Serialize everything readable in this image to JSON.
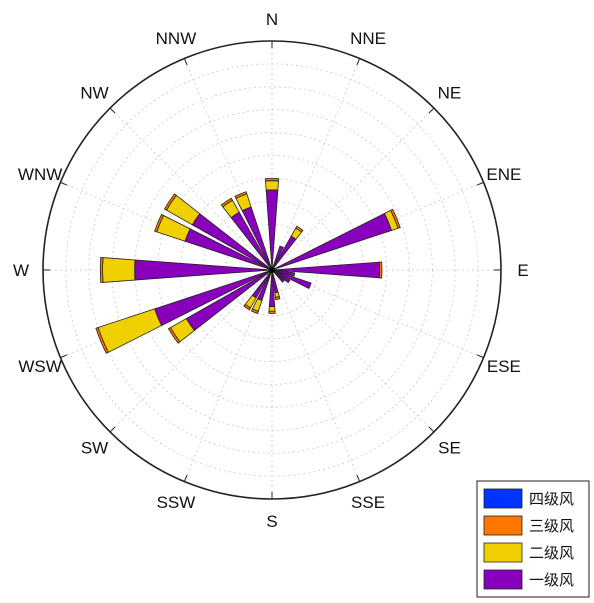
{
  "chart_data": {
    "type": "wind-rose",
    "directions": [
      "N",
      "NNE",
      "NE",
      "ENE",
      "E",
      "ESE",
      "SE",
      "SSE",
      "S",
      "SSW",
      "SW",
      "WSW",
      "W",
      "WNW",
      "NW",
      "NNW"
    ],
    "r_max": 100,
    "ring_step": 10,
    "grid": true,
    "legend_position": "bottom-right",
    "series": [
      {
        "name": "一级风",
        "color": "#8800bb",
        "values": [
          35,
          11,
          0,
          55,
          47,
          18,
          7,
          0,
          16,
          14,
          0,
          54,
          60,
          40,
          0,
          29
        ]
      },
      {
        "name": "二级风",
        "color": "#f0d000",
        "values": [
          4,
          0,
          0,
          3,
          0,
          0,
          0,
          0,
          2,
          5,
          0,
          26,
          14,
          13,
          0,
          6
        ]
      },
      {
        "name": "三级风",
        "color": "#ff7700",
        "values": [
          1,
          0,
          0,
          1,
          1,
          0,
          0,
          0,
          1,
          1,
          0,
          1,
          1,
          1,
          0,
          1
        ]
      },
      {
        "name": "四级风",
        "color": "#0033ff",
        "values": [
          0,
          0,
          0,
          0,
          0,
          0,
          0,
          0,
          0,
          0,
          0,
          0,
          0,
          0,
          0,
          0
        ]
      }
    ],
    "extra_bars": [
      {
        "direction_deg": 33.75,
        "values": [
          17,
          4,
          1,
          0
        ]
      },
      {
        "direction_deg": 326.25,
        "values": [
          29,
          6,
          1,
          0
        ]
      },
      {
        "direction_deg": 303.75,
        "values": [
          40,
          13,
          1,
          0
        ]
      },
      {
        "direction_deg": 213.75,
        "values": [
          14,
          5,
          1,
          0
        ]
      },
      {
        "direction_deg": 236.25,
        "values": [
          43,
          8,
          1,
          0
        ]
      },
      {
        "direction_deg": 168.75,
        "values": [
          10,
          2,
          1,
          0
        ]
      },
      {
        "direction_deg": 123.75,
        "values": [
          9,
          0,
          0,
          0
        ]
      },
      {
        "direction_deg": 101.25,
        "values": [
          10,
          0,
          0,
          0
        ]
      }
    ]
  }
}
